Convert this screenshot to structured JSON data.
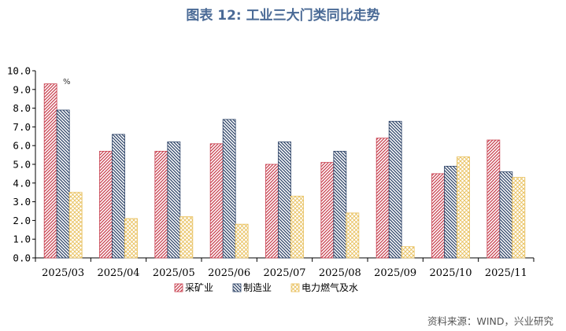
{
  "header": {
    "title": "图表 12: 工业三大门类同比走势",
    "source": "资料来源：WIND，兴业研究"
  },
  "chart_data": {
    "type": "bar",
    "unit_label": "%",
    "categories": [
      "2025/03",
      "2025/04",
      "2025/05",
      "2025/06",
      "2025/07",
      "2025/08",
      "2025/09",
      "2025/10",
      "2025/11"
    ],
    "ylim": [
      0,
      10
    ],
    "ytick_step": 1,
    "yticks": [
      "0.0",
      "1.0",
      "2.0",
      "3.0",
      "4.0",
      "5.0",
      "6.0",
      "7.0",
      "8.0",
      "9.0",
      "10.0"
    ],
    "legend_position": "bottom",
    "grid": false,
    "series": [
      {
        "name": "采矿业",
        "color": "#c8404f",
        "pattern": "hatch-forward",
        "values": [
          9.3,
          5.7,
          5.7,
          6.1,
          5.0,
          5.1,
          6.4,
          4.5,
          6.3
        ]
      },
      {
        "name": "制造业",
        "color": "#2e4468",
        "pattern": "hatch-backward",
        "values": [
          7.9,
          6.6,
          6.2,
          7.4,
          6.2,
          5.7,
          7.3,
          4.9,
          4.6
        ]
      },
      {
        "name": "电力燃气及水",
        "color": "#e8bf5a",
        "pattern": "crosshatch",
        "values": [
          3.5,
          2.1,
          2.2,
          1.8,
          3.3,
          2.4,
          0.6,
          5.4,
          4.3
        ]
      }
    ]
  }
}
